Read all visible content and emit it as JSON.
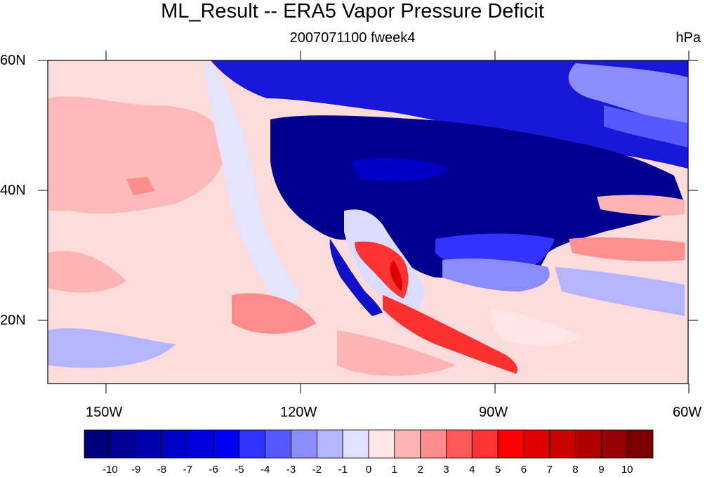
{
  "header": {
    "title": "ML_Result -- ERA5 Vapor Pressure Deficit",
    "subtitle": "2007071100 fweek4",
    "units": "hPa"
  },
  "map": {
    "projection": "cylindrical equidistant",
    "extent": {
      "lon_min": -160,
      "lon_max": -60,
      "lat_min": 10,
      "lat_max": 60
    },
    "lat_tick_labels": [
      "60N",
      "40N",
      "20N"
    ],
    "lon_tick_labels": [
      "150W",
      "120W",
      "90W",
      "60W"
    ],
    "ocean_background": "light red to pale pink (slightly positive VPD)",
    "land_background": "deep blue (strongly negative VPD) over US and Canada",
    "positive_anomaly_region": "Baja California / western Mexico coast, red values up to ~6"
  },
  "colorbar": {
    "levels": [
      "-10",
      "-9",
      "-8",
      "-7",
      "-6",
      "-5",
      "-4",
      "-3",
      "-2",
      "-1",
      "0",
      "1",
      "2",
      "3",
      "4",
      "5",
      "6",
      "7",
      "8",
      "9",
      "10"
    ],
    "colors": [
      "#00007f",
      "#000096",
      "#0000ae",
      "#0000c6",
      "#0000de",
      "#0000f5",
      "#3333ff",
      "#5858ff",
      "#8c8cff",
      "#b4b4ff",
      "#e0e0ff",
      "#ffe5e5",
      "#ffb4b4",
      "#ff8c8c",
      "#ff5858",
      "#ff3333",
      "#ff0000",
      "#e00000",
      "#c80000",
      "#b00000",
      "#960000",
      "#7a0000"
    ]
  },
  "chart_data": {
    "type": "heatmap",
    "title": "ML_Result -- ERA5 Vapor Pressure Deficit",
    "subtitle": "2007071100 fweek4",
    "units": "hPa",
    "color_scale_levels": [
      -10,
      -9,
      -8,
      -7,
      -6,
      -5,
      -4,
      -3,
      -2,
      -1,
      0,
      1,
      2,
      3,
      4,
      5,
      6,
      7,
      8,
      9,
      10
    ],
    "xlim": [
      -160,
      -60
    ],
    "ylim": [
      10,
      60
    ]
  }
}
